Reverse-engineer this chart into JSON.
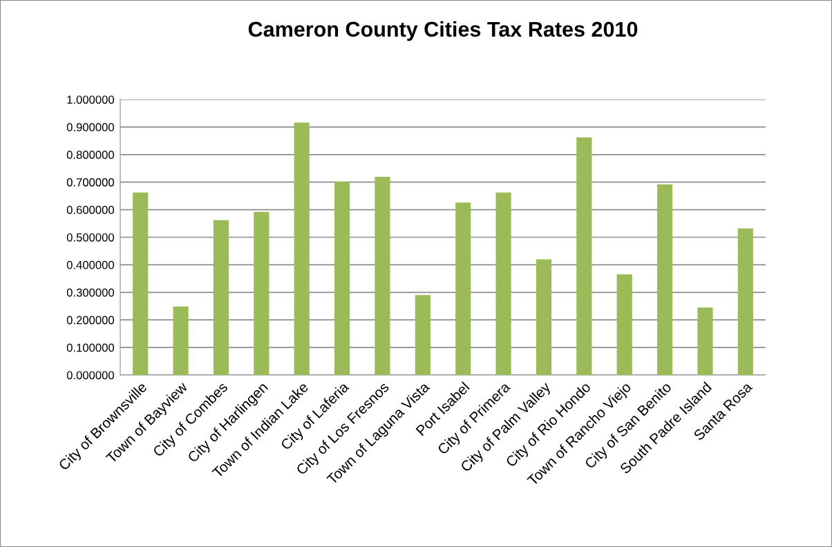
{
  "chart_data": {
    "type": "bar",
    "title": "Cameron County Cities Tax Rates 2010",
    "categories": [
      "City of Brownsville",
      "Town of Bayview",
      "City of Combes",
      "City of Harlingen",
      "Town of Indian Lake",
      "City of Laferia",
      "City of Los Fresnos",
      "Town of Laguna Vista",
      "Port Isabel",
      "City of Primera",
      "City of Palm Valley",
      "City of Rio Hondo",
      "Town of Rancho Viejo",
      "City of San Benito",
      "South Padre Island",
      "Santa Rosa"
    ],
    "values": [
      0.662,
      0.249,
      0.562,
      0.592,
      0.916,
      0.702,
      0.719,
      0.29,
      0.626,
      0.662,
      0.42,
      0.862,
      0.365,
      0.692,
      0.245,
      0.532
    ],
    "color": "#9bbb59",
    "ylim": [
      0,
      1
    ],
    "yticks": [
      {
        "value": 0,
        "label": "0.000000"
      },
      {
        "value": 0.1,
        "label": "0.100000"
      },
      {
        "value": 0.2,
        "label": "0.200000"
      },
      {
        "value": 0.3,
        "label": "0.300000"
      },
      {
        "value": 0.4,
        "label": "0.400000"
      },
      {
        "value": 0.5,
        "label": "0.500000"
      },
      {
        "value": 0.6,
        "label": "0.600000"
      },
      {
        "value": 0.7,
        "label": "0.700000"
      },
      {
        "value": 0.8,
        "label": "0.800000"
      },
      {
        "value": 0.9,
        "label": "0.900000"
      },
      {
        "value": 1,
        "label": "1.000000"
      }
    ],
    "grid": "y",
    "legend": false
  }
}
